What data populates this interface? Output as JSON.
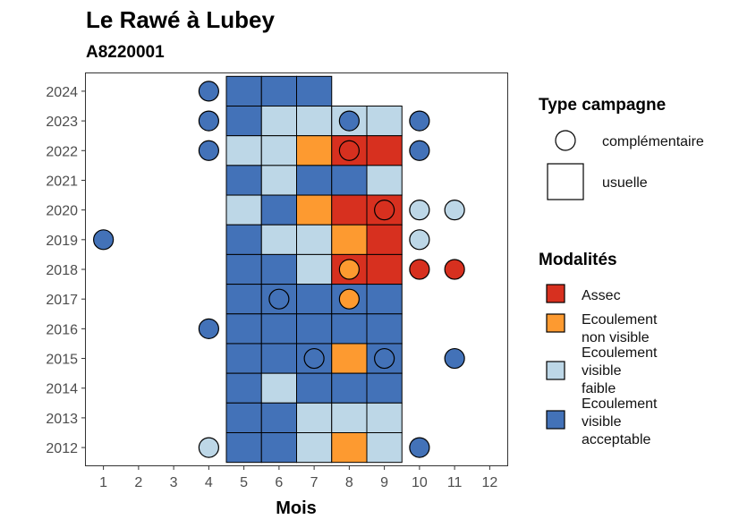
{
  "chart_data": {
    "type": "heatmap",
    "title": "Le Rawé à Lubey",
    "subtitle": "A8220001",
    "xlabel": "Mois",
    "ylabel": "",
    "x_ticks": [
      1,
      2,
      3,
      4,
      5,
      6,
      7,
      8,
      9,
      10,
      11,
      12
    ],
    "y_ticks": [
      2012,
      2013,
      2014,
      2015,
      2016,
      2017,
      2018,
      2019,
      2020,
      2021,
      2022,
      2023,
      2024
    ],
    "xlim": [
      0.5,
      12.5
    ],
    "ylim": [
      2011.4,
      2024.6
    ],
    "grid": false,
    "legend_position": "right",
    "legend_shape": {
      "title": "Type campagne",
      "entries": [
        {
          "label": "complémentaire",
          "shape": "circle"
        },
        {
          "label": "usuelle",
          "shape": "square"
        }
      ]
    },
    "legend_fill": {
      "title": "Modalités",
      "entries": [
        {
          "key": "assec",
          "label_lines": [
            "Assec"
          ],
          "color": "#d7301f"
        },
        {
          "key": "nonvis",
          "label_lines": [
            "Ecoulement",
            "non visible"
          ],
          "color": "#fd9a30"
        },
        {
          "key": "faible",
          "label_lines": [
            "Ecoulement",
            "visible",
            "faible"
          ],
          "color": "#bdd7e7"
        },
        {
          "key": "accept",
          "label_lines": [
            "Ecoulement",
            "visible",
            "acceptable"
          ],
          "color": "#4372b8"
        }
      ]
    },
    "usuelle": [
      {
        "year": 2024,
        "cells": {
          "5": "accept",
          "6": "accept",
          "7": "accept"
        }
      },
      {
        "year": 2023,
        "cells": {
          "5": "accept",
          "6": "faible",
          "7": "faible",
          "8": "faible",
          "9": "faible"
        }
      },
      {
        "year": 2022,
        "cells": {
          "5": "faible",
          "6": "faible",
          "7": "nonvis",
          "8": "assec",
          "9": "assec"
        }
      },
      {
        "year": 2021,
        "cells": {
          "5": "accept",
          "6": "faible",
          "7": "accept",
          "8": "accept",
          "9": "faible"
        }
      },
      {
        "year": 2020,
        "cells": {
          "5": "faible",
          "6": "accept",
          "7": "nonvis",
          "8": "assec",
          "9": "assec"
        }
      },
      {
        "year": 2019,
        "cells": {
          "5": "accept",
          "6": "faible",
          "7": "faible",
          "8": "nonvis",
          "9": "assec"
        }
      },
      {
        "year": 2018,
        "cells": {
          "5": "accept",
          "6": "accept",
          "7": "faible",
          "8": "assec",
          "9": "assec"
        }
      },
      {
        "year": 2017,
        "cells": {
          "5": "accept",
          "6": "accept",
          "7": "accept",
          "8": "accept",
          "9": "accept"
        }
      },
      {
        "year": 2016,
        "cells": {
          "5": "accept",
          "6": "accept",
          "7": "accept",
          "8": "accept",
          "9": "accept"
        }
      },
      {
        "year": 2015,
        "cells": {
          "5": "accept",
          "6": "accept",
          "7": "accept",
          "8": "nonvis",
          "9": "accept"
        }
      },
      {
        "year": 2014,
        "cells": {
          "5": "accept",
          "6": "faible",
          "7": "accept",
          "8": "accept",
          "9": "accept"
        }
      },
      {
        "year": 2013,
        "cells": {
          "5": "accept",
          "6": "accept",
          "7": "faible",
          "8": "faible",
          "9": "faible"
        }
      },
      {
        "year": 2012,
        "cells": {
          "5": "accept",
          "6": "accept",
          "7": "faible",
          "8": "nonvis",
          "9": "faible"
        }
      }
    ],
    "complementaire": [
      {
        "year": 2024,
        "month": 4,
        "value": "accept"
      },
      {
        "year": 2023,
        "month": 4,
        "value": "accept"
      },
      {
        "year": 2023,
        "month": 8,
        "value": "accept"
      },
      {
        "year": 2023,
        "month": 10,
        "value": "accept"
      },
      {
        "year": 2022,
        "month": 4,
        "value": "accept"
      },
      {
        "year": 2022,
        "month": 8,
        "value": "assec"
      },
      {
        "year": 2022,
        "month": 10,
        "value": "accept"
      },
      {
        "year": 2020,
        "month": 9,
        "value": "assec"
      },
      {
        "year": 2020,
        "month": 10,
        "value": "faible"
      },
      {
        "year": 2020,
        "month": 11,
        "value": "faible"
      },
      {
        "year": 2019,
        "month": 1,
        "value": "accept"
      },
      {
        "year": 2019,
        "month": 10,
        "value": "faible"
      },
      {
        "year": 2018,
        "month": 8,
        "value": "nonvis"
      },
      {
        "year": 2018,
        "month": 10,
        "value": "assec"
      },
      {
        "year": 2018,
        "month": 11,
        "value": "assec"
      },
      {
        "year": 2017,
        "month": 6,
        "value": "accept"
      },
      {
        "year": 2017,
        "month": 8,
        "value": "nonvis"
      },
      {
        "year": 2016,
        "month": 4,
        "value": "accept"
      },
      {
        "year": 2015,
        "month": 7,
        "value": "accept"
      },
      {
        "year": 2015,
        "month": 9,
        "value": "accept"
      },
      {
        "year": 2015,
        "month": 11,
        "value": "accept"
      },
      {
        "year": 2012,
        "month": 4,
        "value": "faible"
      },
      {
        "year": 2012,
        "month": 10,
        "value": "accept"
      }
    ]
  }
}
